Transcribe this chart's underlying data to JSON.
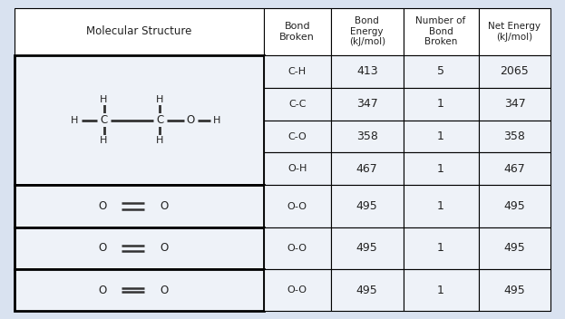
{
  "bg_color": "#d9e2f0",
  "cell_bg_data": "#eef2f8",
  "cell_bg_mol": "#eef2f8",
  "cell_bg_white": "#ffffff",
  "border_color": "#000000",
  "text_color": "#333333",
  "col_header_labels": [
    "Molecular Structure",
    "Bond\nBroken",
    "Bond\nEnergy\n(kJ/mol)",
    "Number of\nBond\nBroken",
    "Net Energy\n(kJ/mol)"
  ],
  "sub_rows": [
    [
      "C-H",
      "413",
      "5",
      "2065"
    ],
    [
      "C-C",
      "347",
      "1",
      "347"
    ],
    [
      "C-O",
      "358",
      "1",
      "358"
    ],
    [
      "O-H",
      "467",
      "1",
      "467"
    ]
  ],
  "o2_rows": [
    [
      "O-O",
      "495",
      "1",
      "495"
    ],
    [
      "O-O",
      "495",
      "1",
      "495"
    ],
    [
      "O-O",
      "495",
      "1",
      "495"
    ]
  ],
  "figsize": [
    6.23,
    3.52
  ],
  "dpi": 100
}
